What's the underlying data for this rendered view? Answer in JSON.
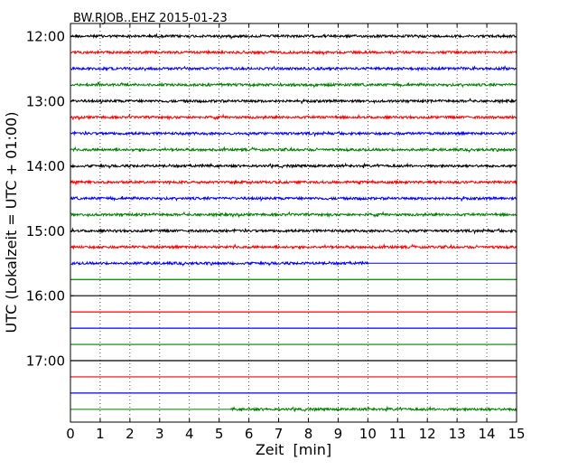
{
  "chart_data": {
    "type": "line",
    "chart_kind": "dayplot-seismogram",
    "title": "BW.RJOB..EHZ 2015-01-23",
    "xlabel": "Zeit  [min]",
    "ylabel": "UTC (Lokalzeit = UTC + 01:00)",
    "xlim": [
      0,
      15
    ],
    "x_ticks": [
      "0",
      "1",
      "2",
      "3",
      "4",
      "5",
      "6",
      "7",
      "8",
      "9",
      "10",
      "11",
      "12",
      "13",
      "14",
      "15"
    ],
    "y_ticks": [
      "12:00",
      "13:00",
      "14:00",
      "15:00",
      "16:00",
      "17:00"
    ],
    "grid": "vertical-dotted",
    "row_interval_minutes": 15,
    "row_start_times": [
      "12:00",
      "12:15",
      "12:30",
      "12:45",
      "13:00",
      "13:15",
      "13:30",
      "13:45",
      "14:00",
      "14:15",
      "14:30",
      "14:45",
      "15:00",
      "15:15",
      "15:30",
      "15:45",
      "16:00",
      "16:15",
      "16:30",
      "16:45",
      "17:00",
      "17:15",
      "17:30",
      "17:45"
    ],
    "row_colors": [
      "#000000",
      "#ff0000",
      "#0000ff",
      "#007f00"
    ],
    "rows_with_signal": {
      "full": [
        0,
        1,
        2,
        3,
        4,
        5,
        6,
        7,
        8,
        9,
        10,
        11,
        12,
        13
      ],
      "partial": [
        {
          "row": 14,
          "from_min": 0,
          "to_min": 10
        },
        {
          "row": 23,
          "from_min": 5.4,
          "to_min": 15
        }
      ],
      "flat": [
        15,
        16,
        17,
        18,
        19,
        20,
        21,
        22
      ]
    }
  }
}
